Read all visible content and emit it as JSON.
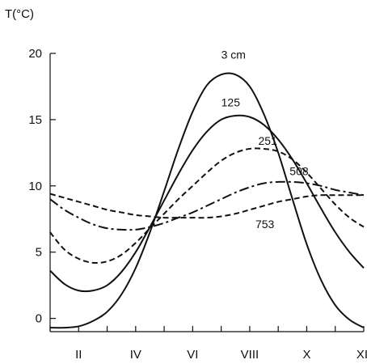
{
  "chart_data": {
    "type": "line",
    "ylabel": "T(°C)",
    "xlim": [
      1,
      12
    ],
    "ylim": [
      -1,
      20
    ],
    "xticks": [
      {
        "label": "II",
        "value": 2
      },
      {
        "label": "IV",
        "value": 4
      },
      {
        "label": "VI",
        "value": 6
      },
      {
        "label": "VIII",
        "value": 8
      },
      {
        "label": "X",
        "value": 10
      },
      {
        "label": "XII",
        "value": 12
      }
    ],
    "yticks": [
      0,
      5,
      10,
      15,
      20
    ],
    "grid": false,
    "series": [
      {
        "name": "3 cm",
        "line_style": "solid",
        "label_x": 7.0,
        "label_y": 19.6,
        "x": [
          1,
          1.5,
          2,
          2.5,
          3,
          3.5,
          4,
          4.5,
          5,
          5.5,
          6,
          6.5,
          7,
          7.5,
          8,
          8.5,
          9,
          9.5,
          10,
          10.5,
          11,
          11.5,
          12
        ],
        "y": [
          -0.7,
          -0.7,
          -0.6,
          -0.2,
          0.5,
          1.8,
          3.8,
          6.5,
          9.6,
          12.8,
          15.6,
          17.6,
          18.4,
          18.4,
          17.5,
          15.4,
          12.5,
          9.0,
          5.6,
          2.9,
          1.0,
          -0.1,
          -0.7
        ]
      },
      {
        "name": "125",
        "line_style": "solid",
        "label_x": 7.0,
        "label_y": 16.0,
        "x": [
          1,
          1.5,
          2,
          2.5,
          3,
          3.5,
          4,
          4.5,
          5,
          5.5,
          6,
          6.5,
          7,
          7.5,
          8,
          8.5,
          9,
          9.5,
          10,
          10.5,
          11,
          11.5,
          12
        ],
        "y": [
          3.6,
          2.6,
          2.1,
          2.1,
          2.5,
          3.5,
          5.0,
          6.9,
          8.9,
          10.9,
          12.7,
          14.1,
          15.0,
          15.3,
          15.2,
          14.6,
          13.5,
          12.0,
          10.2,
          8.3,
          6.5,
          5.0,
          3.8
        ]
      },
      {
        "name": "251",
        "line_style": "dashed",
        "label_x": 8.3,
        "label_y": 13.1,
        "x": [
          1,
          1.5,
          2,
          2.5,
          3,
          3.5,
          4,
          4.5,
          5,
          5.5,
          6,
          6.5,
          7,
          7.5,
          8,
          8.5,
          9,
          9.5,
          10,
          10.5,
          11,
          11.5,
          12
        ],
        "y": [
          6.5,
          5.2,
          4.5,
          4.2,
          4.3,
          4.8,
          5.7,
          6.8,
          7.9,
          9.0,
          10.0,
          11.0,
          11.9,
          12.5,
          12.8,
          12.8,
          12.6,
          12.0,
          11.0,
          9.8,
          8.6,
          7.6,
          6.9
        ]
      },
      {
        "name": "508",
        "line_style": "dashdot",
        "label_x": 9.4,
        "label_y": 10.8,
        "x": [
          1,
          1.5,
          2,
          2.5,
          3,
          3.5,
          4,
          4.5,
          5,
          5.5,
          6,
          6.5,
          7,
          7.5,
          8,
          8.5,
          9,
          9.5,
          10,
          10.5,
          11,
          11.5,
          12
        ],
        "y": [
          9.0,
          8.2,
          7.6,
          7.1,
          6.8,
          6.7,
          6.7,
          6.9,
          7.2,
          7.6,
          8.0,
          8.5,
          9.0,
          9.5,
          9.9,
          10.2,
          10.3,
          10.3,
          10.2,
          10.0,
          9.7,
          9.5,
          9.3
        ]
      },
      {
        "name": "753",
        "line_style": "dashed",
        "label_x": 8.2,
        "label_y": 6.8,
        "x": [
          1,
          1.5,
          2,
          2.5,
          3,
          3.5,
          4,
          4.5,
          5,
          5.5,
          6,
          6.5,
          7,
          7.5,
          8,
          8.5,
          9,
          9.5,
          10,
          10.5,
          11,
          11.5,
          12
        ],
        "y": [
          9.4,
          9.1,
          8.8,
          8.5,
          8.2,
          8.0,
          7.8,
          7.7,
          7.6,
          7.6,
          7.6,
          7.6,
          7.7,
          7.9,
          8.2,
          8.5,
          8.8,
          9.0,
          9.2,
          9.3,
          9.3,
          9.3,
          9.3
        ]
      }
    ]
  }
}
